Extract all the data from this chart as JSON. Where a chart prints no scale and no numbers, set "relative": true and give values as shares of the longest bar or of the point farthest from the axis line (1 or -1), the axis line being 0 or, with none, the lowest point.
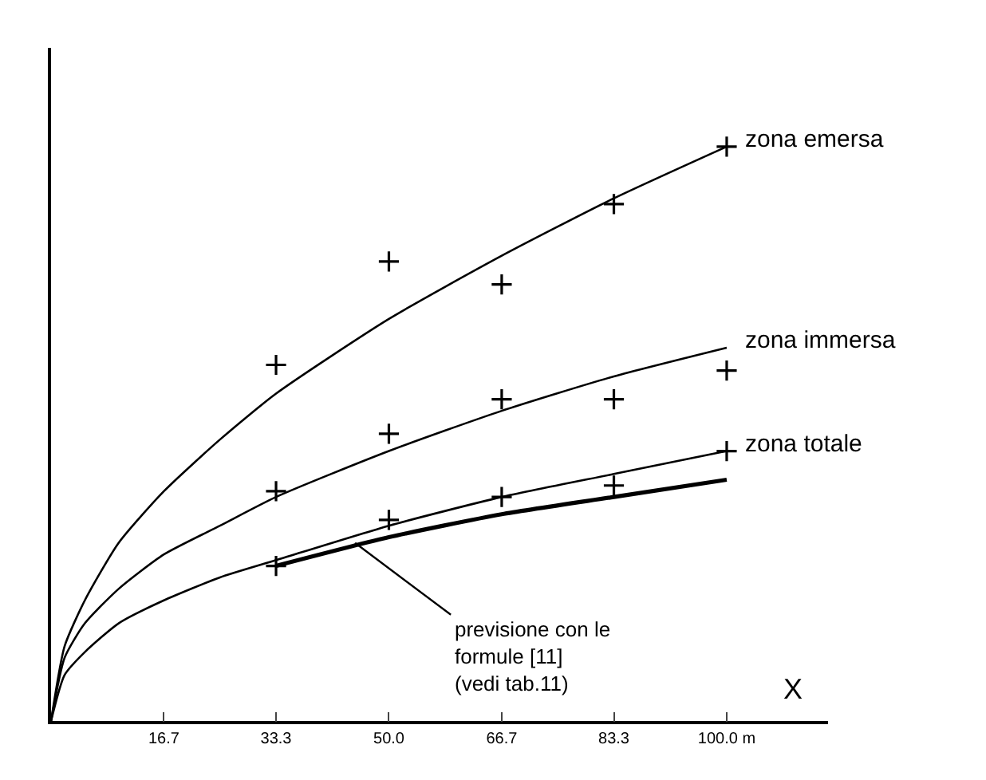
{
  "chart_data": {
    "type": "line",
    "relative": true,
    "xlabel": "X",
    "xlim": [
      0,
      115
    ],
    "xticks": [
      16.7,
      33.3,
      {
        "value": 50,
        "label": "50.0"
      },
      66.7,
      83.3,
      {
        "value": 100,
        "label": "100.0 m"
      }
    ],
    "x": [
      0,
      2,
      5,
      10,
      16.7,
      25,
      33.3,
      50,
      66.7,
      83.3,
      100
    ],
    "series": [
      {
        "name": "zona emersa",
        "color": "#000000",
        "values": [
          0,
          0.13,
          0.21,
          0.31,
          0.4,
          0.49,
          0.57,
          0.7,
          0.81,
          0.91,
          1.0
        ]
      },
      {
        "name": "zona immersa",
        "color": "#000000",
        "values": [
          0,
          0.11,
          0.17,
          0.23,
          0.29,
          0.34,
          0.39,
          0.47,
          0.54,
          0.6,
          0.65
        ]
      },
      {
        "name": "zona totale",
        "color": "#000000",
        "values": [
          0,
          0.08,
          0.12,
          0.17,
          0.21,
          0.25,
          0.28,
          0.34,
          0.39,
          0.43,
          0.47
        ]
      },
      {
        "type": "line",
        "color": "#000000",
        "x": [
          33.3,
          50,
          66.7,
          83.3,
          100
        ],
        "values": [
          0.27,
          0.32,
          0.36,
          0.39,
          0.42
        ]
      },
      {
        "type": "scatter",
        "marker": "cross",
        "color": "#000000",
        "x": [
          33.3,
          50,
          66.7,
          83.3,
          100
        ],
        "values": [
          0.62,
          0.8,
          0.76,
          0.9,
          1.0
        ]
      },
      {
        "type": "scatter",
        "marker": "cross",
        "color": "#000000",
        "x": [
          33.3,
          50,
          66.7,
          83.3,
          100
        ],
        "values": [
          0.4,
          0.5,
          0.56,
          0.56,
          0.61
        ]
      },
      {
        "type": "scatter",
        "marker": "cross",
        "color": "#000000",
        "x": [
          33.3,
          50,
          66.7,
          83.3,
          100
        ],
        "values": [
          0.27,
          0.35,
          0.39,
          0.41,
          0.47
        ]
      }
    ],
    "annotations": [
      {
        "text": "previsione con le\nformule [11]\n(vedi tab.11)",
        "x": 45,
        "y": 0.31
      }
    ],
    "grid": false,
    "legend": false
  }
}
